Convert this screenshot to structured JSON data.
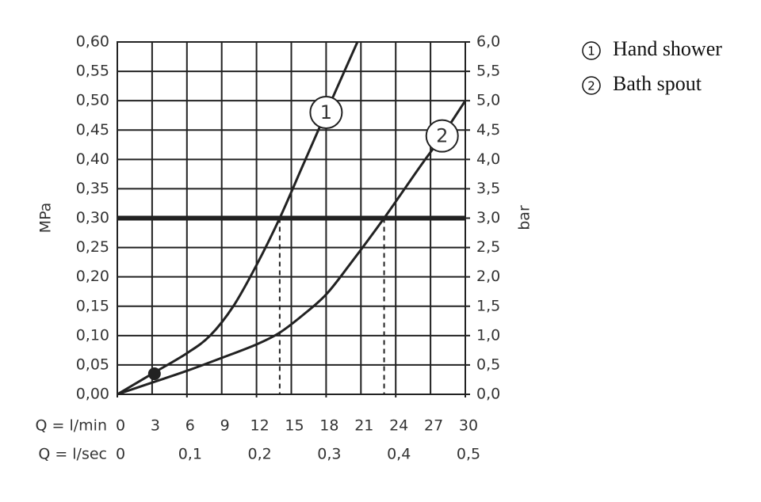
{
  "chart_data": {
    "type": "line",
    "y_label": "MPa",
    "y2_label": "bar",
    "x_label": "Q = l/min",
    "x2_label": "Q = l/sec",
    "xlim": [
      0,
      30
    ],
    "xticks": [
      0,
      3,
      6,
      9,
      12,
      15,
      18,
      21,
      24,
      27,
      30
    ],
    "x2lim": [
      0,
      0.5
    ],
    "x2ticks": [
      0,
      {
        "value": 0.1,
        "label": "0,1"
      },
      {
        "value": 0.2,
        "label": "0,2"
      },
      {
        "value": 0.3,
        "label": "0,3"
      },
      {
        "value": 0.4,
        "label": "0,4"
      },
      {
        "value": 0.5,
        "label": "0,5"
      }
    ],
    "ylim": [
      0,
      0.6
    ],
    "yticks": [
      {
        "value": 0,
        "label": "0,00"
      },
      {
        "value": 0.05,
        "label": "0,05"
      },
      {
        "value": 0.1,
        "label": "0,10"
      },
      {
        "value": 0.15,
        "label": "0,15"
      },
      {
        "value": 0.2,
        "label": "0,20"
      },
      {
        "value": 0.25,
        "label": "0,25"
      },
      {
        "value": 0.3,
        "label": "0,30"
      },
      {
        "value": 0.35,
        "label": "0,35"
      },
      {
        "value": 0.4,
        "label": "0,40"
      },
      {
        "value": 0.45,
        "label": "0,45"
      },
      {
        "value": 0.5,
        "label": "0,50"
      },
      {
        "value": 0.55,
        "label": "0,55"
      },
      {
        "value": 0.6,
        "label": "0,60"
      }
    ],
    "y2lim": [
      0,
      6
    ],
    "y2ticks": [
      {
        "value": 0,
        "label": "0,0"
      },
      {
        "value": 0.5,
        "label": "0,5"
      },
      {
        "value": 1,
        "label": "1,0"
      },
      {
        "value": 1.5,
        "label": "1,5"
      },
      {
        "value": 2,
        "label": "2,0"
      },
      {
        "value": 2.5,
        "label": "2,5"
      },
      {
        "value": 3,
        "label": "3,0"
      },
      {
        "value": 3.5,
        "label": "3,5"
      },
      {
        "value": 4,
        "label": "4,0"
      },
      {
        "value": 4.5,
        "label": "4,5"
      },
      {
        "value": 5,
        "label": "5,0"
      },
      {
        "value": 5.5,
        "label": "5,5"
      },
      {
        "value": 6,
        "label": "6,0"
      }
    ],
    "grid": true,
    "color": "#222222",
    "series": [
      {
        "name": "Hand shower",
        "marker": "1",
        "color": "#222222",
        "x": [
          0,
          3,
          6,
          8,
          10,
          12,
          14,
          16,
          18,
          20.7
        ],
        "values": [
          0,
          0.035,
          0.07,
          0.1,
          0.15,
          0.22,
          0.3,
          0.39,
          0.48,
          0.6
        ]
      },
      {
        "name": "Bath spout",
        "marker": "2",
        "color": "#222222",
        "x": [
          0,
          3,
          6,
          9,
          12,
          14,
          16,
          18,
          20,
          23,
          26,
          28,
          30
        ],
        "values": [
          0,
          0.02,
          0.04,
          0.062,
          0.085,
          0.105,
          0.135,
          0.17,
          0.22,
          0.3,
          0.385,
          0.44,
          0.5
        ]
      }
    ],
    "points": [
      {
        "x": 3.2,
        "y": 0.035
      }
    ],
    "reference_lines": {
      "y": 0.3,
      "x": [
        14,
        23
      ]
    }
  }
}
